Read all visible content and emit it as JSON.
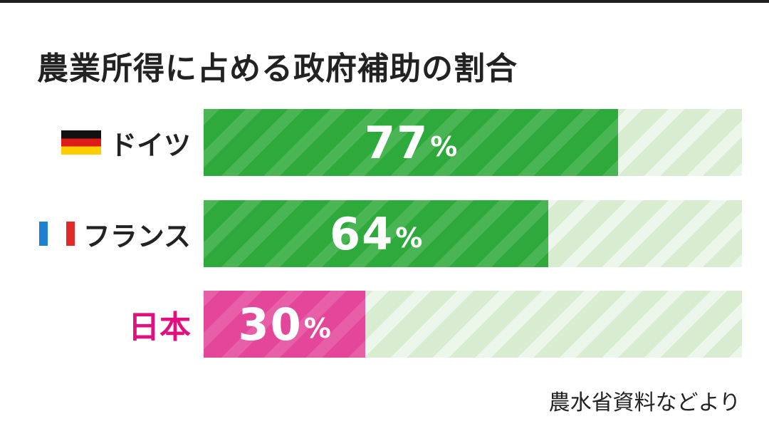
{
  "colors": {
    "green": "#2eaa3c",
    "pink": "#e4479a",
    "pink_label": "#e0107f",
    "track": "#d8ecd0",
    "text": "#222222"
  },
  "chart_data": {
    "type": "bar",
    "orientation": "horizontal",
    "title": "農業所得に占める政府補助の割合",
    "categories": [
      "ドイツ",
      "フランス",
      "日本"
    ],
    "values": [
      77,
      64,
      30
    ],
    "unit": "%",
    "xlim": [
      0,
      100
    ],
    "source": "農水省資料などより",
    "grid": false,
    "legend": "none",
    "rows": [
      {
        "label": "ドイツ",
        "value": 77,
        "value_text": "77",
        "unit": "%",
        "flag_icon": "germany-flag-icon",
        "fill_color": "#2eaa3c",
        "label_color": "#222222"
      },
      {
        "label": "フランス",
        "value": 64,
        "value_text": "64",
        "unit": "%",
        "flag_icon": "france-flag-icon",
        "fill_color": "#2eaa3c",
        "label_color": "#222222"
      },
      {
        "label": "日本",
        "value": 30,
        "value_text": "30",
        "unit": "%",
        "flag_icon": "",
        "fill_color": "#e4479a",
        "label_color": "#e0107f"
      }
    ]
  }
}
